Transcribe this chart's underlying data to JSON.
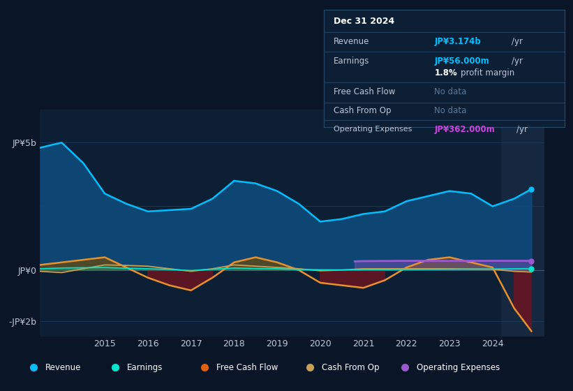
{
  "bg_color": "#0a1628",
  "plot_bg_color": "#0d1f35",
  "grid_color": "#1e3a5f",
  "text_color": "#c0c8d8",
  "years": [
    2013.5,
    2014.0,
    2014.5,
    2015.0,
    2015.5,
    2016.0,
    2016.5,
    2017.0,
    2017.5,
    2018.0,
    2018.5,
    2019.0,
    2019.5,
    2020.0,
    2020.5,
    2021.0,
    2021.5,
    2022.0,
    2022.5,
    2023.0,
    2023.5,
    2024.0,
    2024.5,
    2024.9
  ],
  "revenue": [
    4800000000.0,
    5000000000.0,
    4200000000.0,
    3000000000.0,
    2600000000.0,
    2300000000.0,
    2350000000.0,
    2400000000.0,
    2800000000.0,
    3500000000.0,
    3400000000.0,
    3100000000.0,
    2600000000.0,
    1900000000.0,
    2000000000.0,
    2200000000.0,
    2300000000.0,
    2700000000.0,
    2900000000.0,
    3100000000.0,
    3000000000.0,
    2500000000.0,
    2800000000.0,
    3174000000.0
  ],
  "earnings": [
    50000000.0,
    80000000.0,
    90000000.0,
    100000000.0,
    70000000.0,
    50000000.0,
    20000000.0,
    -20000000.0,
    30000000.0,
    80000000.0,
    60000000.0,
    50000000.0,
    20000000.0,
    10000000.0,
    5000000.0,
    10000000.0,
    15000000.0,
    20000000.0,
    25000000.0,
    30000000.0,
    35000000.0,
    40000000.0,
    50000000.0,
    56000000.0
  ],
  "free_cash_flow": [
    200000000.0,
    300000000.0,
    400000000.0,
    500000000.0,
    100000000.0,
    -300000000.0,
    -600000000.0,
    -800000000.0,
    -300000000.0,
    300000000.0,
    500000000.0,
    300000000.0,
    0.0,
    -500000000.0,
    -600000000.0,
    -700000000.0,
    -400000000.0,
    100000000.0,
    400000000.0,
    500000000.0,
    300000000.0,
    100000000.0,
    -1500000000.0,
    -2400000000.0
  ],
  "cash_from_op": [
    -50000000.0,
    -100000000.0,
    50000000.0,
    200000000.0,
    180000000.0,
    150000000.0,
    50000000.0,
    -50000000.0,
    50000000.0,
    200000000.0,
    150000000.0,
    100000000.0,
    50000000.0,
    -30000000.0,
    0.0,
    50000000.0,
    50000000.0,
    50000000.0,
    50000000.0,
    50000000.0,
    40000000.0,
    30000000.0,
    -50000000.0,
    -80000000.0
  ],
  "op_expenses_x": [
    2020.8,
    2021.0,
    2021.5,
    2022.0,
    2022.5,
    2023.0,
    2023.5,
    2024.0,
    2024.5,
    2024.9
  ],
  "op_expenses_y": [
    340000000.0,
    350000000.0,
    355000000.0,
    360000000.0,
    360000000.0,
    360000000.0,
    360000000.0,
    362000000.0,
    362000000.0,
    362000000.0
  ],
  "revenue_color": "#00bfff",
  "revenue_fill": "#0d4a7a",
  "earnings_color": "#00e5cc",
  "fcf_color": "#e8912d",
  "fcf_fill_pos": "#5a4a1e",
  "fcf_fill_neg": "#6a1522",
  "cashop_color": "#c8a050",
  "opex_color": "#9b59d0",
  "highlight_color": "#162840",
  "info_box_bg": "#0d1f35",
  "info_box_border": "#2a4a6a",
  "cyan_value": "#00bfff",
  "magenta_value": "#cc44dd",
  "nodata_color": "#5a7a9a",
  "legend_items": [
    "Revenue",
    "Earnings",
    "Free Cash Flow",
    "Cash From Op",
    "Operating Expenses"
  ],
  "legend_colors": [
    "#00bfff",
    "#00e5cc",
    "#e06010",
    "#c8a050",
    "#9b59d0"
  ]
}
